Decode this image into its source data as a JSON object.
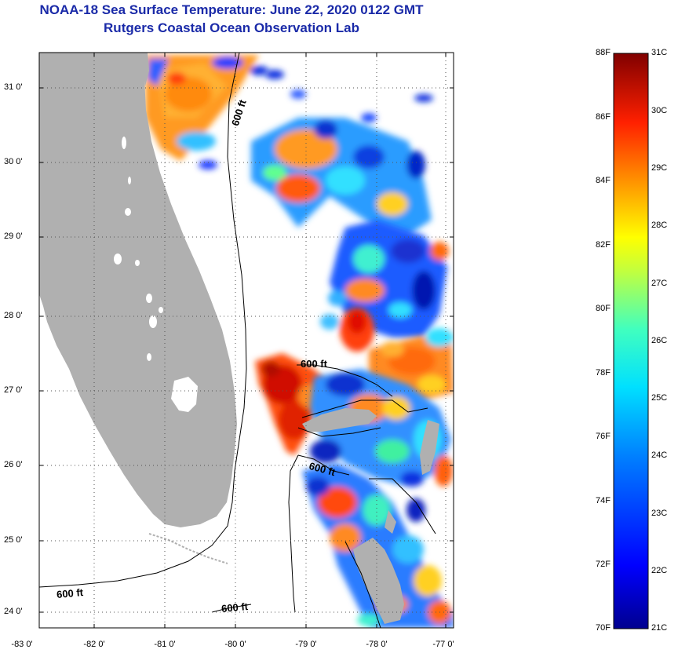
{
  "title": {
    "line1": "NOAA-18 Sea Surface Temperature:  June 22, 2020 0122 GMT",
    "line2": "Rutgers Coastal Ocean Observation Lab"
  },
  "map": {
    "lat_ticks": [
      "31 0'",
      "30 0'",
      "29 0'",
      "28 0'",
      "27 0'",
      "26 0'",
      "25 0'",
      "24 0'"
    ],
    "lon_ticks": [
      "-83 0'",
      "-82 0'",
      "-81 0'",
      "-80 0'",
      "-79 0'",
      "-78 0'",
      "-77 0'"
    ],
    "contour_labels": [
      "600 ft",
      "600 ft",
      "600 ft",
      "600 ft",
      "600 ft"
    ],
    "land_color": "#b0b0b0",
    "grid": "dotted"
  },
  "colorbar": {
    "fahrenheit_labels": [
      "88F",
      "86F",
      "84F",
      "82F",
      "80F",
      "78F",
      "76F",
      "74F",
      "72F",
      "70F"
    ],
    "celsius_labels": [
      "31C",
      "30C",
      "29C",
      "28C",
      "27C",
      "26C",
      "25C",
      "24C",
      "23C",
      "22C",
      "21C"
    ],
    "min_c": 21,
    "max_c": 31,
    "colormap": "jet"
  }
}
